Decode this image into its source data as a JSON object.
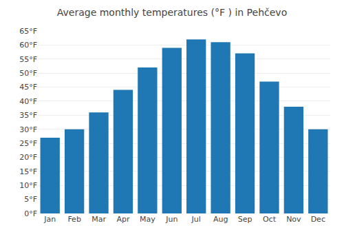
{
  "chart_data": {
    "type": "bar",
    "title": "Average monthly temperatures (°F ) in Pehčevo",
    "categories": [
      "Jan",
      "Feb",
      "Mar",
      "Apr",
      "May",
      "Jun",
      "Jul",
      "Aug",
      "Sep",
      "Oct",
      "Nov",
      "Dec"
    ],
    "values": [
      27,
      30,
      36,
      44,
      52,
      59,
      62,
      61,
      57,
      47,
      38,
      30
    ],
    "ylim": [
      0,
      65
    ],
    "yticks": [
      {
        "value": 0,
        "label": "0°F"
      },
      {
        "value": 5,
        "label": "5°F"
      },
      {
        "value": 10,
        "label": "10°F"
      },
      {
        "value": 15,
        "label": "15°F"
      },
      {
        "value": 20,
        "label": "20°F"
      },
      {
        "value": 25,
        "label": "25°F"
      },
      {
        "value": 30,
        "label": "30°F"
      },
      {
        "value": 35,
        "label": "35°F"
      },
      {
        "value": 40,
        "label": "40°F"
      },
      {
        "value": 45,
        "label": "45°F"
      },
      {
        "value": 50,
        "label": "50°F"
      },
      {
        "value": 55,
        "label": "55°F"
      },
      {
        "value": 60,
        "label": "60°F"
      },
      {
        "value": 65,
        "label": "65°F"
      }
    ],
    "grid": true
  }
}
